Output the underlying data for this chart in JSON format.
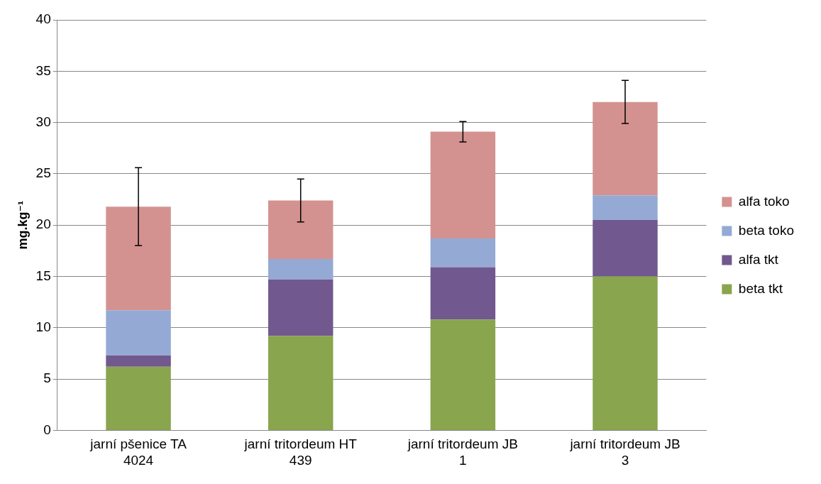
{
  "chart_data": {
    "type": "bar",
    "stacked": true,
    "ylabel": "mg.kg⁻¹",
    "categories": [
      "jarní pšenice TA 4024",
      "jarní tritordeum HT 439",
      "jarní tritordeum JB 1",
      "jarní tritordeum JB 3"
    ],
    "series": [
      {
        "name": "beta tkt",
        "color": "#89a54e",
        "values": [
          6.2,
          9.2,
          10.8,
          15.0
        ]
      },
      {
        "name": "alfa tkt",
        "color": "#71588f",
        "values": [
          1.1,
          5.5,
          5.1,
          5.5
        ]
      },
      {
        "name": "beta toko",
        "color": "#94aad4",
        "values": [
          4.4,
          2.0,
          2.8,
          2.4
        ]
      },
      {
        "name": "alfa toko",
        "color": "#d39290",
        "values": [
          10.1,
          5.7,
          10.4,
          9.1
        ],
        "errors": [
          3.8,
          2.1,
          1.0,
          2.1
        ]
      }
    ],
    "ylim": [
      0,
      40
    ],
    "yticks": [
      0,
      5,
      10,
      15,
      20,
      25,
      30,
      35,
      40
    ],
    "grid": "y",
    "legend": "right"
  }
}
